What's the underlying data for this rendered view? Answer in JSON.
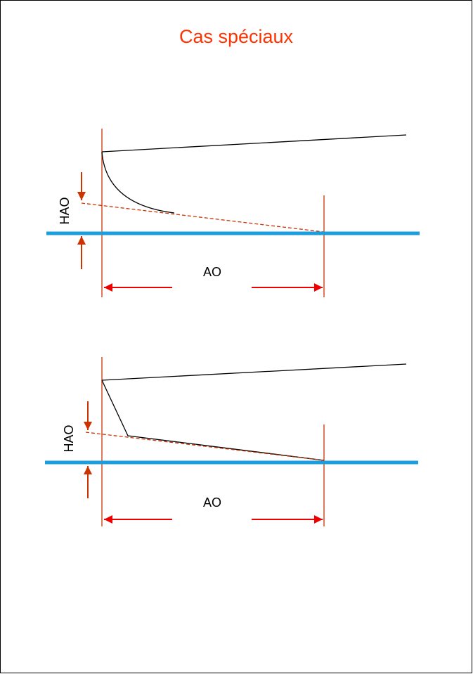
{
  "title": "Cas spéciaux",
  "diagrams": [
    {
      "height_label": "HAO",
      "length_label": "AO"
    },
    {
      "height_label": "HAO",
      "length_label": "AO"
    }
  ],
  "colors": {
    "title": "#ff3300",
    "water_line": "#1a9ee0",
    "guide_line": "#cc3300",
    "dimension": "#ee0000",
    "arrow": "#cc3300",
    "profile": "#000000"
  }
}
